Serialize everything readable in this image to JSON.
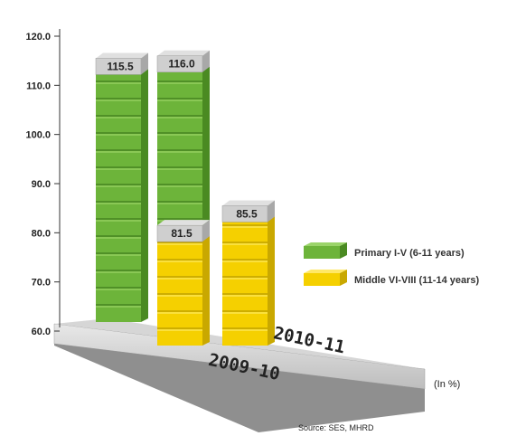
{
  "chart_data": {
    "type": "bar",
    "style": "3d-stacked-blocks",
    "unit_note": "(In %)",
    "source": "Source: SES, MHRD",
    "ylim": [
      60,
      120
    ],
    "yticks": [
      "120.0",
      "110.0",
      "100.0",
      "90.0",
      "80.0",
      "70.0",
      "60.0"
    ],
    "categories": [
      "2009-10",
      "2010-11"
    ],
    "series": [
      {
        "name": "Primary I-V (6-11 years)",
        "color": "#6db43a",
        "values": [
          115.5,
          116.0
        ],
        "labels": [
          "115.5",
          "116.0"
        ]
      },
      {
        "name": "Middle VI-VIII (11-14 years)",
        "color": "#f5d000",
        "values": [
          81.5,
          85.5
        ],
        "labels": [
          "81.5",
          "85.5"
        ]
      }
    ]
  }
}
